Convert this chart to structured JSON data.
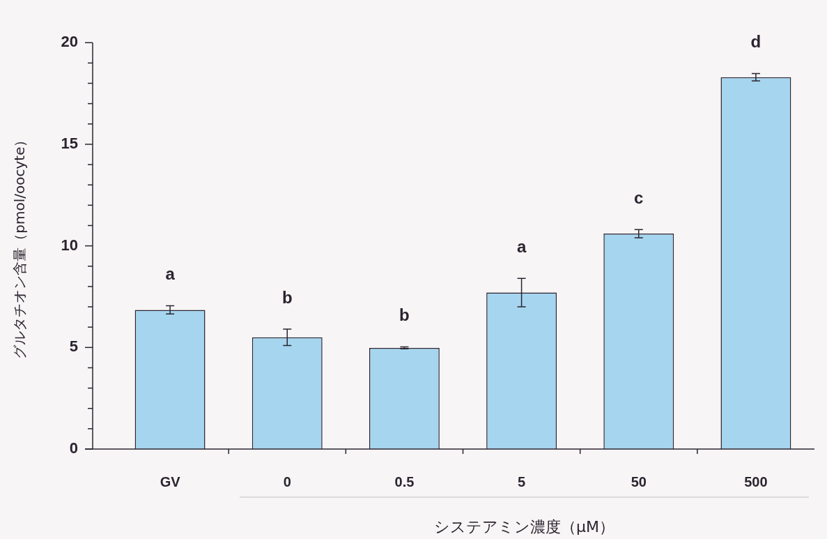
{
  "chart_data": {
    "type": "bar",
    "xlabel": "システアミン濃度（μM）",
    "ylabel": "グルタチオン含量（pmol/oocyte）",
    "categories": [
      "GV",
      "0",
      "0.5",
      "5",
      "50",
      "500"
    ],
    "values": [
      6.85,
      5.5,
      4.98,
      7.7,
      10.6,
      18.3
    ],
    "errors": [
      0.2,
      0.4,
      0.05,
      0.7,
      0.2,
      0.18
    ],
    "color": "#a6d5ef",
    "ylim": [
      0,
      20
    ],
    "yticks": [
      0,
      {
        "value": 1,
        "label": null
      },
      {
        "value": 2,
        "label": null
      },
      {
        "value": 3,
        "label": null
      },
      {
        "value": 4,
        "label": null
      },
      5,
      {
        "value": 6,
        "label": null
      },
      {
        "value": 7,
        "label": null
      },
      {
        "value": 8,
        "label": null
      },
      {
        "value": 9,
        "label": null
      },
      10,
      {
        "value": 11,
        "label": null
      },
      {
        "value": 12,
        "label": null
      },
      {
        "value": 13,
        "label": null
      },
      {
        "value": 14,
        "label": null
      },
      15,
      {
        "value": 16,
        "label": null
      },
      {
        "value": 17,
        "label": null
      },
      {
        "value": 18,
        "label": null
      },
      {
        "value": 19,
        "label": null
      },
      20
    ],
    "annotations": [
      {
        "text": "a",
        "x": "GV",
        "y": 6.85
      },
      {
        "text": "b",
        "x": "0",
        "y": 5.5
      },
      {
        "text": "b",
        "x": "0.5",
        "y": 4.98
      },
      {
        "text": "a",
        "x": "5",
        "y": 7.7
      },
      {
        "text": "c",
        "x": "50",
        "y": 10.6
      },
      {
        "text": "d",
        "x": "500",
        "y": 18.3
      }
    ]
  }
}
